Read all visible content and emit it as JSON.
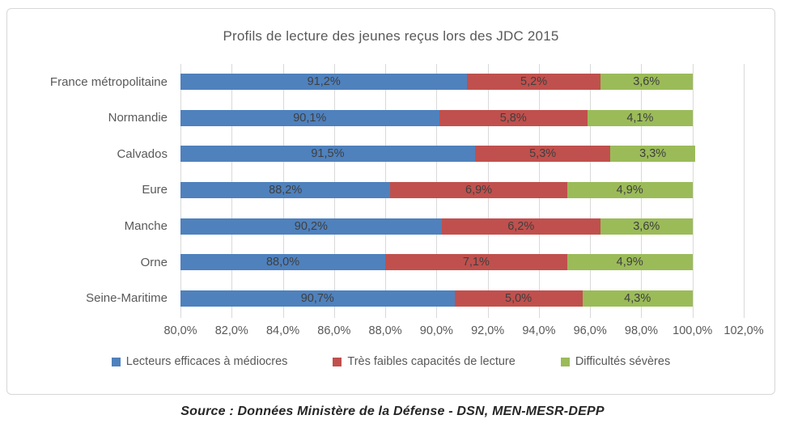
{
  "chart": {
    "title": "Profils de lecture des jeunes reçus lors des JDC 2015",
    "source": "Source : Données Ministère de la Défense - DSN, MEN-MESR-DEPP"
  },
  "chart_data": {
    "type": "bar",
    "orientation": "horizontal-stacked",
    "title": "Profils de lecture des jeunes reçus lors des JDC 2015",
    "categories": [
      "France métropolitaine",
      "Normandie",
      "Calvados",
      "Eure",
      "Manche",
      "Orne",
      "Seine-Maritime"
    ],
    "series": [
      {
        "name": "Lecteurs efficaces à médiocres",
        "color": "#4F81BD",
        "values": [
          91.2,
          90.1,
          91.5,
          88.2,
          90.2,
          88.0,
          90.7
        ],
        "labels": [
          "91,2%",
          "90,1%",
          "91,5%",
          "88,2%",
          "90,2%",
          "88,0%",
          "90,7%"
        ]
      },
      {
        "name": "Très faibles capacités de lecture",
        "color": "#C0504D",
        "values": [
          5.2,
          5.8,
          5.3,
          6.9,
          6.2,
          7.1,
          5.0
        ],
        "labels": [
          "5,2%",
          "5,8%",
          "5,3%",
          "6,9%",
          "6,2%",
          "7,1%",
          "5,0%"
        ]
      },
      {
        "name": "Difficultés sévères",
        "color": "#9BBB59",
        "values": [
          3.6,
          4.1,
          3.3,
          4.9,
          3.6,
          4.9,
          4.3
        ],
        "labels": [
          "3,6%",
          "4,1%",
          "3,3%",
          "4,9%",
          "3,6%",
          "4,9%",
          "4,3%"
        ]
      }
    ],
    "xlim": [
      80,
      102
    ],
    "x_tick_step": 2,
    "x_tick_labels": [
      "80,0%",
      "82,0%",
      "84,0%",
      "86,0%",
      "88,0%",
      "90,0%",
      "92,0%",
      "94,0%",
      "96,0%",
      "98,0%",
      "100,0%",
      "102,0%"
    ],
    "grid": true,
    "legend_position": "bottom",
    "label_color": "#3F3F3F",
    "axis_text_color": "#595959",
    "gridline_color": "#D9D9D9"
  }
}
